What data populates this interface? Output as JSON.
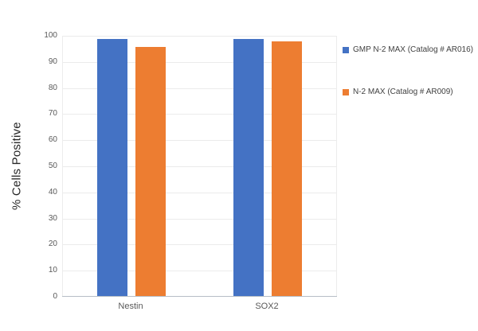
{
  "chart_data": {
    "type": "bar",
    "categories": [
      "Nestin",
      "SOX2"
    ],
    "series": [
      {
        "name": "GMP N-2 MAX (Catalog # AR016)",
        "color": "#4472C4",
        "values": [
          98.5,
          98.5
        ]
      },
      {
        "name": "N-2 MAX (Catalog # AR009)",
        "color": "#ED7D31",
        "values": [
          95.5,
          97.5
        ]
      }
    ],
    "title": "",
    "xlabel": "",
    "ylabel": "% Cells Positive",
    "ylim": [
      0,
      100
    ],
    "ytick_step": 10,
    "ytick_labels": [
      "0",
      "10",
      "20",
      "30",
      "40",
      "50",
      "60",
      "70",
      "80",
      "90",
      "100"
    ],
    "grid": true,
    "legend_position": "right"
  },
  "colors": {
    "series_blue": "#4472C4",
    "series_orange": "#ED7D31",
    "gridline": "#EBEBEB",
    "axis_line": "#B7BEC6",
    "tick_text": "#595959",
    "category_text": "#595959",
    "legend_text": "#404040",
    "ylabel_text": "#262626",
    "background": "#FFFFFF"
  }
}
